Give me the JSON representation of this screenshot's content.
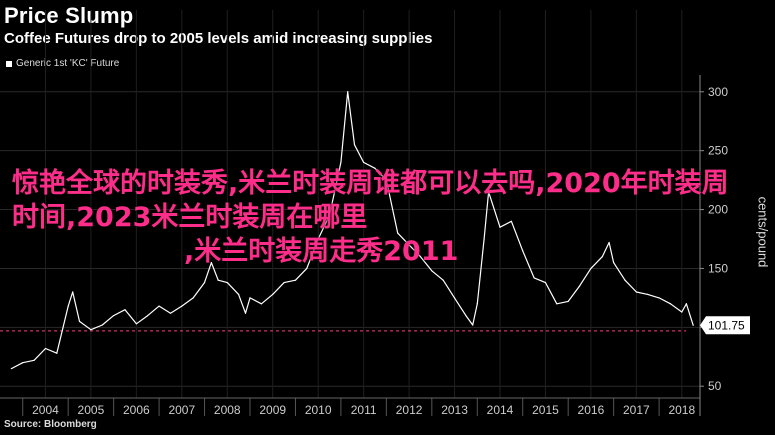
{
  "header": {
    "title": "Price Slump",
    "subtitle": "Coffee Futures drop to 2005 levels amid increasing supplies"
  },
  "legend": {
    "label": "Generic 1st 'KC' Future"
  },
  "source": "Source: Bloomberg",
  "overlay": {
    "line1": "惊艳全球的时装秀,米兰时装周谁都可以去吗,2020年时装周时间,2023米兰时装周在哪里",
    "line2": ",米兰时装周走秀2011"
  },
  "colors": {
    "background": "#000000",
    "line": "#ffffff",
    "reference_line": "#ff3b7a",
    "overlay_text": "#ff2d8a",
    "axis": "#888888"
  },
  "chart_data": {
    "type": "line",
    "title": "Price Slump",
    "subtitle": "Coffee Futures drop to 2005 levels amid increasing supplies",
    "ylabel": "cents/pound",
    "xlabel": "",
    "series": [
      {
        "name": "Generic 1st 'KC' Future",
        "x": [
          2003.75,
          2004.0,
          2004.25,
          2004.5,
          2004.75,
          2005.0,
          2005.1,
          2005.25,
          2005.5,
          2005.75,
          2006.0,
          2006.25,
          2006.5,
          2006.75,
          2007.0,
          2007.25,
          2007.5,
          2007.75,
          2008.0,
          2008.15,
          2008.3,
          2008.5,
          2008.75,
          2008.9,
          2009.0,
          2009.25,
          2009.5,
          2009.75,
          2010.0,
          2010.25,
          2010.5,
          2010.75,
          2011.0,
          2011.15,
          2011.3,
          2011.5,
          2011.75,
          2012.0,
          2012.25,
          2012.5,
          2012.75,
          2013.0,
          2013.25,
          2013.5,
          2013.75,
          2013.9,
          2014.0,
          2014.15,
          2014.25,
          2014.5,
          2014.75,
          2015.0,
          2015.25,
          2015.5,
          2015.75,
          2016.0,
          2016.25,
          2016.5,
          2016.75,
          2016.9,
          2017.0,
          2017.25,
          2017.5,
          2017.75,
          2018.0,
          2018.25,
          2018.5,
          2018.6,
          2018.75
        ],
        "values": [
          65,
          70,
          72,
          82,
          78,
          118,
          130,
          105,
          98,
          102,
          110,
          115,
          103,
          110,
          118,
          112,
          118,
          125,
          138,
          155,
          140,
          138,
          128,
          112,
          125,
          120,
          128,
          138,
          140,
          150,
          175,
          195,
          240,
          300,
          255,
          240,
          235,
          225,
          180,
          170,
          160,
          148,
          140,
          125,
          110,
          102,
          120,
          175,
          215,
          185,
          190,
          165,
          142,
          138,
          120,
          122,
          135,
          150,
          160,
          172,
          155,
          140,
          130,
          128,
          125,
          120,
          113,
          120,
          101.75
        ]
      }
    ],
    "x_tick_labels": [
      "2004",
      "2005",
      "2006",
      "2007",
      "2008",
      "2009",
      "2010",
      "2011",
      "2012",
      "2013",
      "2014",
      "2015",
      "2016",
      "2017",
      "2018"
    ],
    "y_tick_labels": [
      "50",
      "100",
      "150",
      "200",
      "250",
      "300"
    ],
    "xlim": [
      2003.5,
      2018.9
    ],
    "ylim": [
      40,
      310
    ],
    "reference_line": {
      "value": 97
    },
    "last_value_label": "101.75",
    "grid": true,
    "legend_position": "top-left"
  }
}
